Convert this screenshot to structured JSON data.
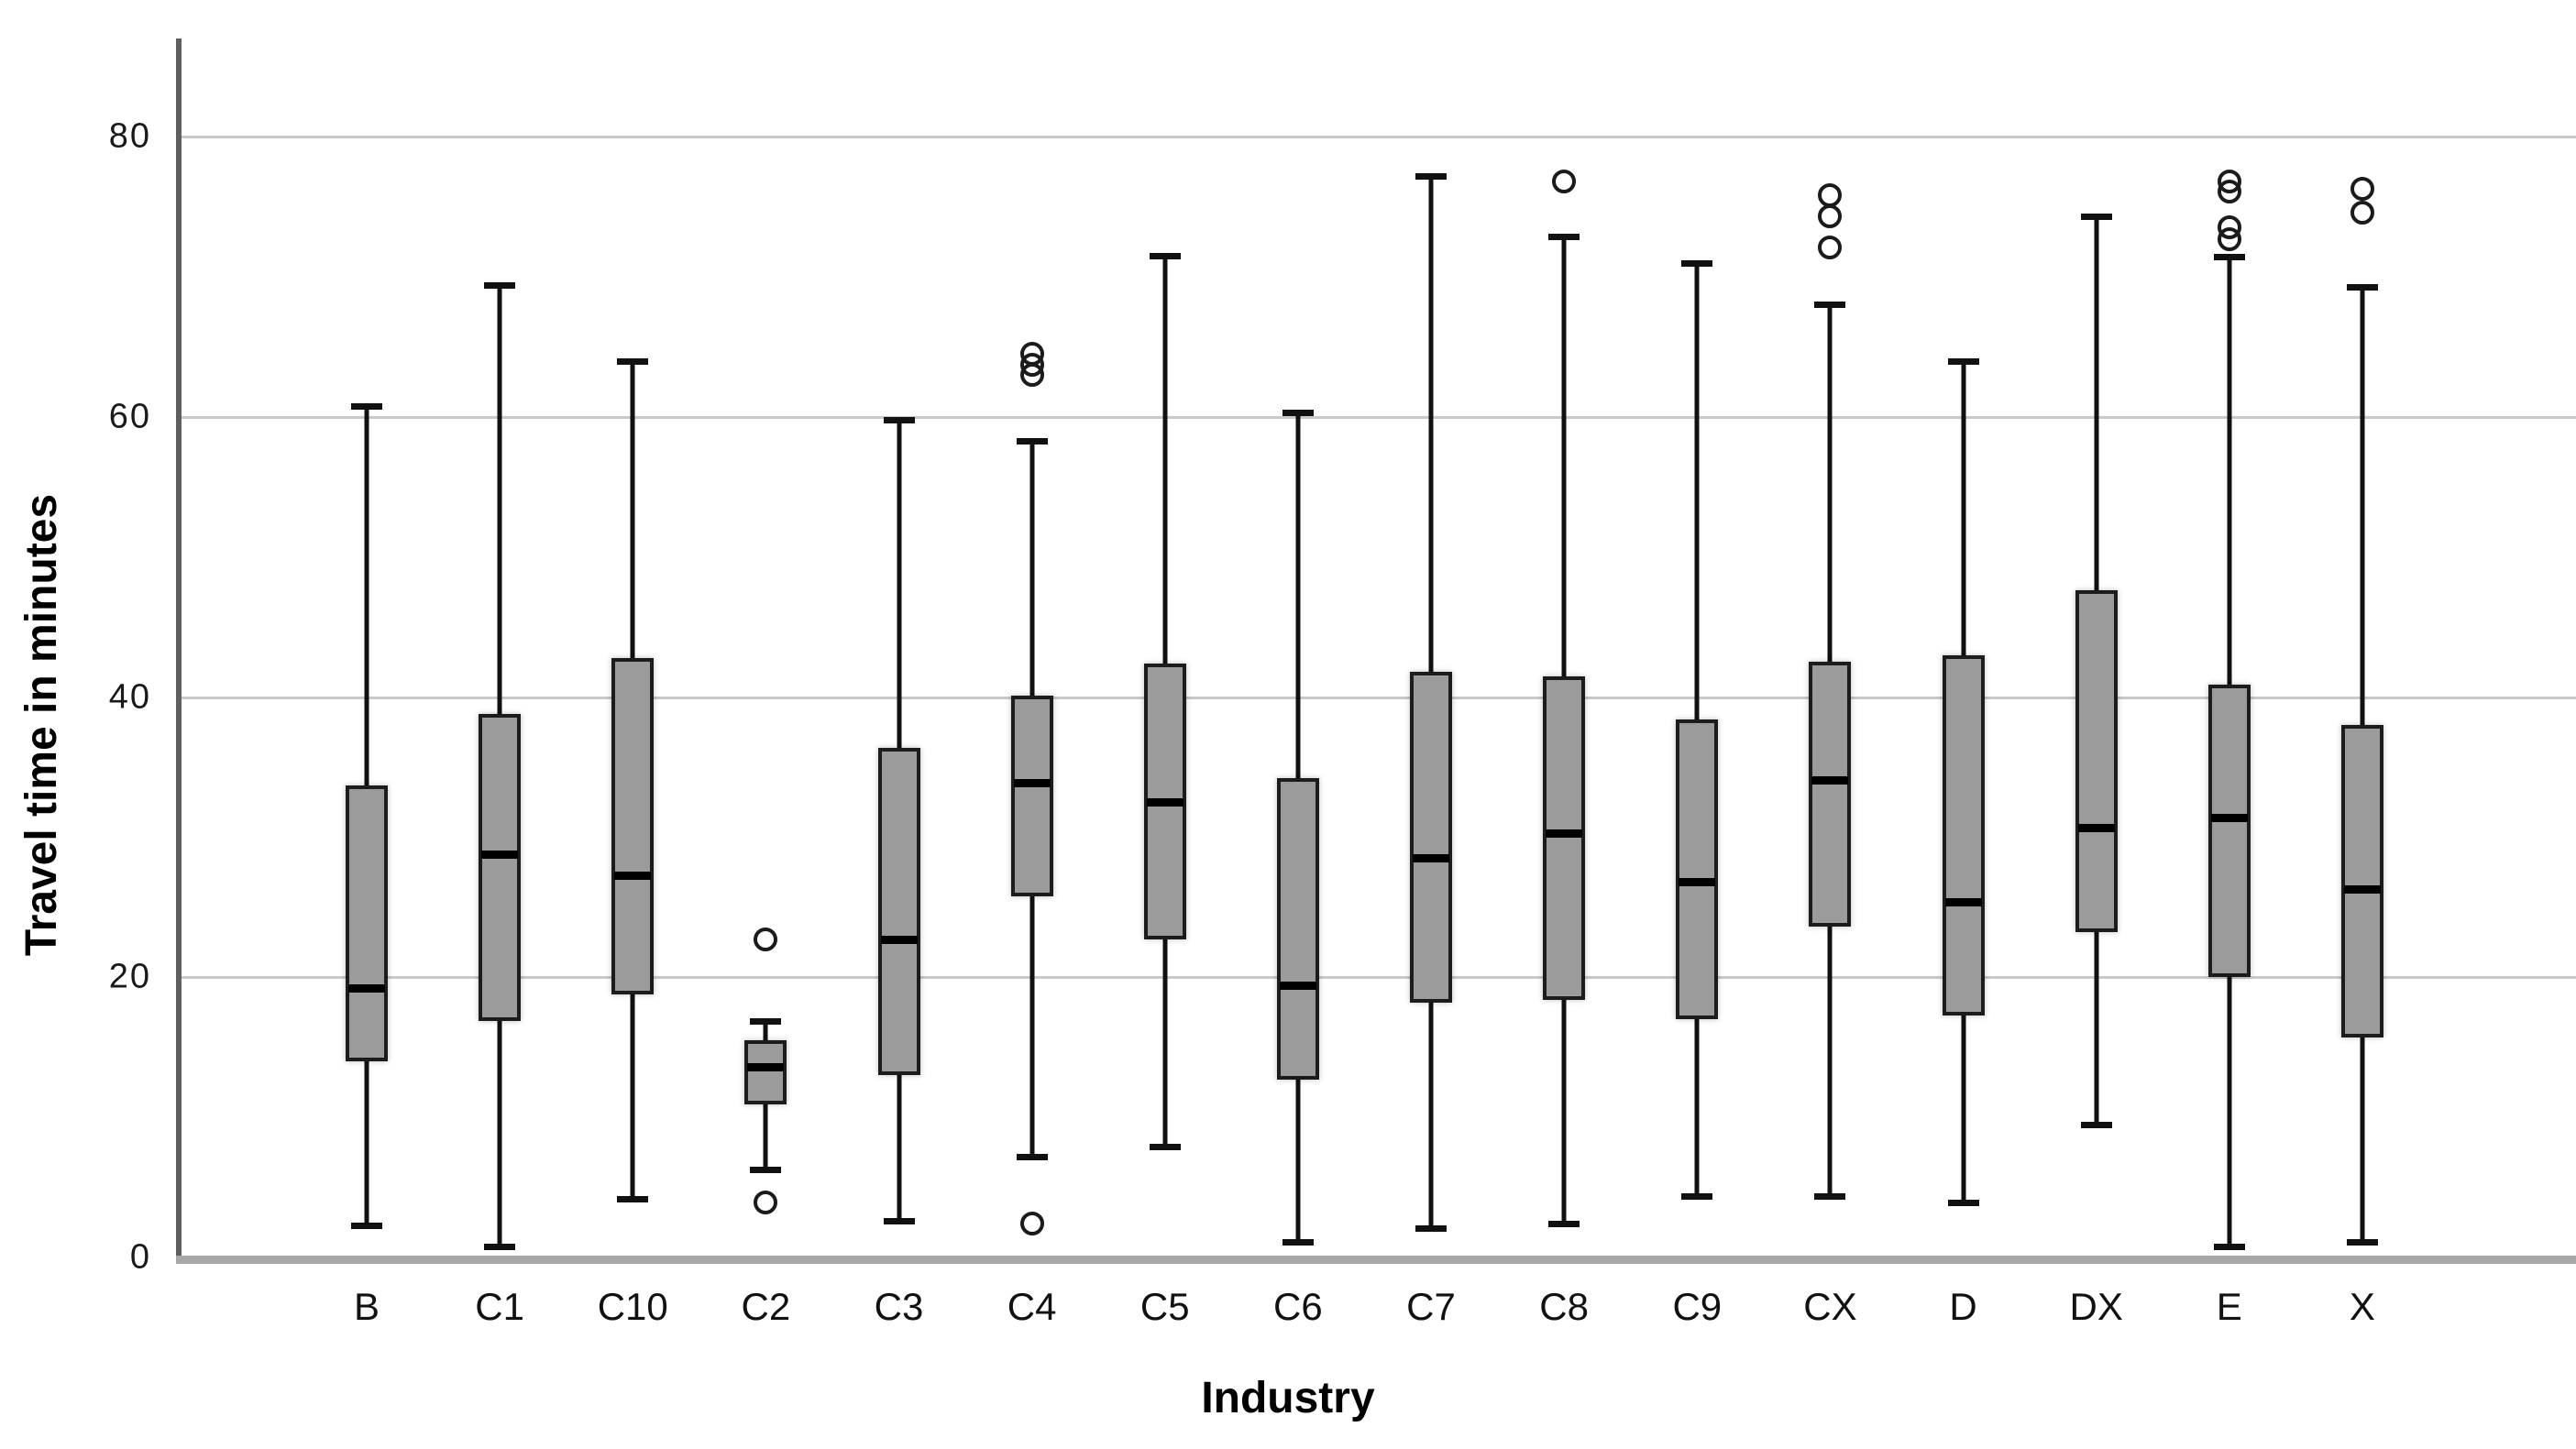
{
  "chart_data": {
    "type": "box",
    "title": "",
    "xlabel": "Industry",
    "ylabel": "Travel time in minutes",
    "ylim": [
      0,
      87
    ],
    "yticks": [
      0,
      20,
      40,
      60,
      80
    ],
    "grid": "horizontal-light-gray",
    "legend": "none",
    "box_fill_color": "#9b9b9b",
    "line_color": "#111111",
    "categories": [
      "B",
      "C1",
      "C10",
      "C2",
      "C3",
      "C4",
      "C5",
      "C6",
      "C7",
      "C8",
      "C9",
      "CX",
      "D",
      "DX",
      "E",
      "X"
    ],
    "boxes": [
      {
        "category": "B",
        "low": 2.3,
        "q1": 14.0,
        "median": 19.2,
        "q3": 33.7,
        "high": 60.8,
        "outliers": []
      },
      {
        "category": "C1",
        "low": 0.8,
        "q1": 16.9,
        "median": 28.8,
        "q3": 38.8,
        "high": 69.4,
        "outliers": []
      },
      {
        "category": "C10",
        "low": 4.2,
        "q1": 18.8,
        "median": 27.3,
        "q3": 42.8,
        "high": 64.0,
        "outliers": []
      },
      {
        "category": "C2",
        "low": 6.3,
        "q1": 10.9,
        "median": 13.6,
        "q3": 15.5,
        "high": 16.9,
        "outliers": [
          22.7,
          3.9
        ]
      },
      {
        "category": "C3",
        "low": 2.6,
        "q1": 13.0,
        "median": 22.7,
        "q3": 36.4,
        "high": 59.8,
        "outliers": []
      },
      {
        "category": "C4",
        "low": 7.2,
        "q1": 25.8,
        "median": 33.9,
        "q3": 40.1,
        "high": 58.3,
        "outliers": [
          64.5,
          63.7,
          63.0,
          2.4
        ]
      },
      {
        "category": "C5",
        "low": 7.9,
        "q1": 22.7,
        "median": 32.5,
        "q3": 42.4,
        "high": 71.5,
        "outliers": []
      },
      {
        "category": "C6",
        "low": 1.1,
        "q1": 12.7,
        "median": 19.4,
        "q3": 34.2,
        "high": 60.3,
        "outliers": []
      },
      {
        "category": "C7",
        "low": 2.1,
        "q1": 18.2,
        "median": 28.5,
        "q3": 41.8,
        "high": 77.2,
        "outliers": []
      },
      {
        "category": "C8",
        "low": 2.4,
        "q1": 18.4,
        "median": 30.3,
        "q3": 41.5,
        "high": 72.9,
        "outliers": [
          76.8
        ]
      },
      {
        "category": "C9",
        "low": 4.4,
        "q1": 17.0,
        "median": 26.8,
        "q3": 38.4,
        "high": 71.0,
        "outliers": []
      },
      {
        "category": "CX",
        "low": 4.4,
        "q1": 23.6,
        "median": 34.1,
        "q3": 42.5,
        "high": 68.0,
        "outliers": [
          75.8,
          74.3,
          72.1
        ]
      },
      {
        "category": "D",
        "low": 3.9,
        "q1": 17.3,
        "median": 25.4,
        "q3": 43.0,
        "high": 64.0,
        "outliers": []
      },
      {
        "category": "DX",
        "low": 9.5,
        "q1": 23.2,
        "median": 30.7,
        "q3": 47.6,
        "high": 74.3,
        "outliers": []
      },
      {
        "category": "E",
        "low": 0.8,
        "q1": 20.0,
        "median": 31.4,
        "q3": 40.9,
        "high": 71.4,
        "outliers": [
          76.8,
          76.1,
          73.5,
          72.7
        ]
      },
      {
        "category": "X",
        "low": 1.1,
        "q1": 15.7,
        "median": 26.3,
        "q3": 38.0,
        "high": 69.3,
        "outliers": [
          76.3,
          74.6
        ]
      }
    ]
  }
}
